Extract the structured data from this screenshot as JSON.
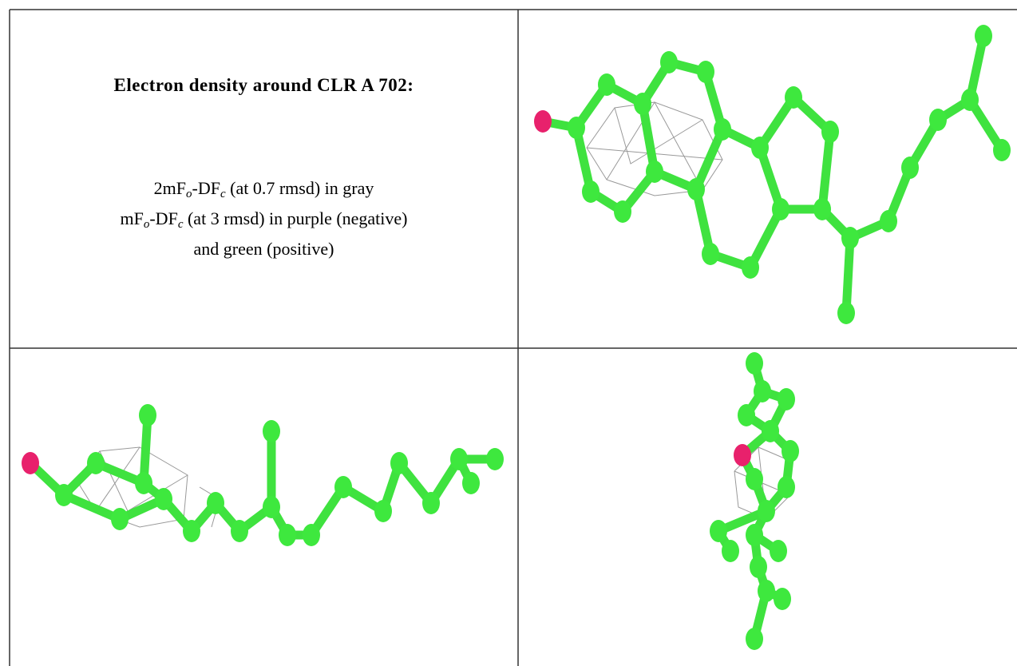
{
  "panel": {
    "title": "Electron density around CLR A 702:",
    "lines": [
      [
        "2mF",
        "o",
        "-DF",
        "c",
        " (at 0.7 rmsd) in gray"
      ],
      [
        "mF",
        "o",
        "-DF",
        "c",
        " (at 3 rmsd) in purple (negative)"
      ],
      [
        "and green (positive)"
      ]
    ]
  }
}
